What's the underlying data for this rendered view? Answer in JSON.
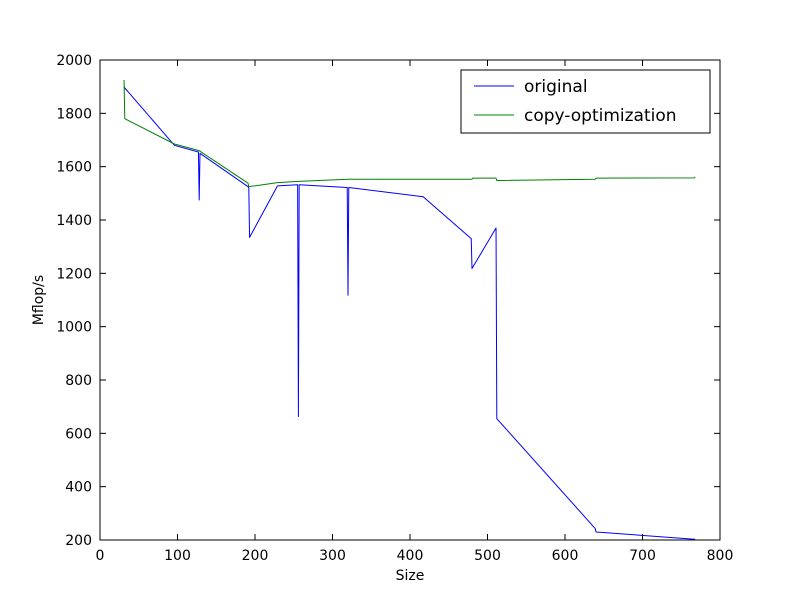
{
  "chart_data": {
    "type": "line",
    "title": "",
    "xlabel": "Size",
    "ylabel": "Mflop/s",
    "xlim": [
      0,
      800
    ],
    "ylim": [
      200,
      2000
    ],
    "xticks": [
      0,
      100,
      200,
      300,
      400,
      500,
      600,
      700,
      800
    ],
    "yticks": [
      200,
      400,
      600,
      800,
      1000,
      1200,
      1400,
      1600,
      1800,
      2000
    ],
    "grid": false,
    "legend_position": "top-right",
    "series": [
      {
        "name": "original",
        "color": "#0000ff",
        "points": [
          [
            31,
            1900
          ],
          [
            32,
            1895
          ],
          [
            96,
            1680
          ],
          [
            127,
            1655
          ],
          [
            128,
            1475
          ],
          [
            129,
            1650
          ],
          [
            191,
            1525
          ],
          [
            192,
            1520
          ],
          [
            193,
            1335
          ],
          [
            229,
            1528
          ],
          [
            255,
            1532
          ],
          [
            256,
            663
          ],
          [
            257,
            1532
          ],
          [
            319,
            1522
          ],
          [
            320,
            1118
          ],
          [
            321,
            1522
          ],
          [
            417,
            1487
          ],
          [
            479,
            1330
          ],
          [
            480,
            1218
          ],
          [
            511,
            1370
          ],
          [
            512,
            655
          ],
          [
            639,
            243
          ],
          [
            640,
            230
          ],
          [
            767,
            203
          ],
          [
            768,
            203
          ]
        ]
      },
      {
        "name": "copy-optimization",
        "color": "#008000",
        "points": [
          [
            31,
            1925
          ],
          [
            32,
            1780
          ],
          [
            96,
            1685
          ],
          [
            128,
            1660
          ],
          [
            191,
            1538
          ],
          [
            192,
            1525
          ],
          [
            229,
            1540
          ],
          [
            256,
            1545
          ],
          [
            320,
            1553
          ],
          [
            480,
            1553
          ],
          [
            481,
            1557
          ],
          [
            511,
            1557
          ],
          [
            512,
            1548
          ],
          [
            639,
            1553
          ],
          [
            640,
            1557
          ],
          [
            767,
            1558
          ],
          [
            768,
            1562
          ]
        ]
      }
    ]
  }
}
